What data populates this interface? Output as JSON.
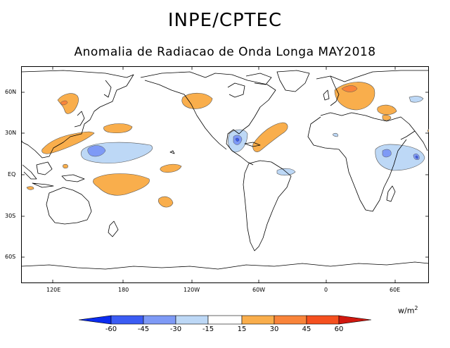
{
  "header": {
    "title": "INPE/CPTEC",
    "subtitle": "Anomalia de Radiacao de Onda Longa MAY2018"
  },
  "map": {
    "latitude_labels": [
      "60N",
      "30N",
      "EQ",
      "30S",
      "60S"
    ],
    "longitude_labels": [
      "120E",
      "180",
      "120W",
      "60W",
      "0",
      "60E"
    ]
  },
  "legend": {
    "units_base": "w/m",
    "units_exp": "2",
    "tick_labels": [
      "-60",
      "-45",
      "-30",
      "-15",
      "15",
      "30",
      "45",
      "60"
    ],
    "colors": {
      "below_-60": "#0b2cf0",
      "-60_-45": "#3b5cf4",
      "-45_-30": "#7e9af6",
      "-30_-15": "#bdd8f6",
      "-15_15": "#ffffff",
      "15_30": "#f9ae4c",
      "30_45": "#f9843a",
      "45_60": "#f5501f",
      "above_60": "#d1180f"
    }
  }
}
